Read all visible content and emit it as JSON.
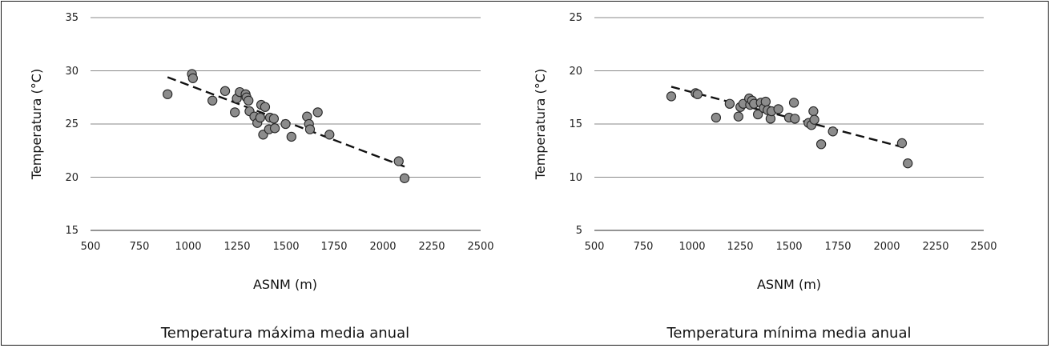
{
  "chart_data": [
    {
      "type": "scatter",
      "title": "Temperatura máxima media anual",
      "xlabel": "ASNM (m)",
      "ylabel": "Temperatura (°C)",
      "xlim": [
        500,
        2500
      ],
      "ylim": [
        15,
        35
      ],
      "xticks": [
        "500",
        "750",
        "1000",
        "1250",
        "1500",
        "1750",
        "2000",
        "2250",
        "2500"
      ],
      "yticks": [
        "15",
        "20",
        "25",
        "30",
        "35"
      ],
      "grid": "horizontal",
      "points": [
        [
          895,
          27.8
        ],
        [
          1020,
          29.7
        ],
        [
          1025,
          29.3
        ],
        [
          1125,
          27.2
        ],
        [
          1190,
          28.1
        ],
        [
          1240,
          26.1
        ],
        [
          1250,
          27.4
        ],
        [
          1265,
          28.0
        ],
        [
          1295,
          27.8
        ],
        [
          1300,
          27.5
        ],
        [
          1310,
          27.2
        ],
        [
          1315,
          26.2
        ],
        [
          1340,
          25.7
        ],
        [
          1355,
          25.1
        ],
        [
          1370,
          25.6
        ],
        [
          1375,
          26.8
        ],
        [
          1385,
          24.0
        ],
        [
          1395,
          26.6
        ],
        [
          1415,
          24.5
        ],
        [
          1420,
          25.6
        ],
        [
          1440,
          25.5
        ],
        [
          1445,
          24.6
        ],
        [
          1500,
          25.0
        ],
        [
          1530,
          23.8
        ],
        [
          1610,
          25.7
        ],
        [
          1620,
          25.0
        ],
        [
          1625,
          24.5
        ],
        [
          1665,
          26.1
        ],
        [
          1725,
          24.0
        ],
        [
          2080,
          21.5
        ],
        [
          2110,
          19.9
        ]
      ],
      "trendline": {
        "style": "dashed",
        "x": [
          895,
          2110
        ],
        "y": [
          29.4,
          21.0
        ]
      }
    },
    {
      "type": "scatter",
      "title": "Temperatura mínima media anual",
      "xlabel": "ASNM (m)",
      "ylabel": "Temperatura (°C)",
      "xlim": [
        500,
        2500
      ],
      "ylim": [
        5,
        25
      ],
      "xticks": [
        "500",
        "750",
        "1000",
        "1250",
        "1500",
        "1750",
        "2000",
        "2250",
        "2500"
      ],
      "yticks": [
        "5",
        "10",
        "15",
        "20",
        "25"
      ],
      "grid": "horizontal",
      "points": [
        [
          895,
          17.6
        ],
        [
          1020,
          17.9
        ],
        [
          1030,
          17.8
        ],
        [
          1125,
          15.6
        ],
        [
          1195,
          16.9
        ],
        [
          1240,
          15.7
        ],
        [
          1250,
          16.6
        ],
        [
          1265,
          16.9
        ],
        [
          1295,
          17.4
        ],
        [
          1300,
          16.8
        ],
        [
          1310,
          17.2
        ],
        [
          1320,
          16.9
        ],
        [
          1340,
          15.9
        ],
        [
          1355,
          17.0
        ],
        [
          1370,
          16.5
        ],
        [
          1380,
          17.1
        ],
        [
          1390,
          16.3
        ],
        [
          1405,
          15.5
        ],
        [
          1410,
          16.2
        ],
        [
          1445,
          16.4
        ],
        [
          1500,
          15.6
        ],
        [
          1525,
          17.0
        ],
        [
          1530,
          15.5
        ],
        [
          1600,
          15.1
        ],
        [
          1615,
          14.9
        ],
        [
          1625,
          16.2
        ],
        [
          1630,
          15.4
        ],
        [
          1665,
          13.1
        ],
        [
          1725,
          14.3
        ],
        [
          2080,
          13.2
        ],
        [
          2110,
          11.3
        ]
      ],
      "trendline": {
        "style": "dashed",
        "x": [
          895,
          2110
        ],
        "y": [
          18.5,
          12.7
        ]
      }
    }
  ]
}
